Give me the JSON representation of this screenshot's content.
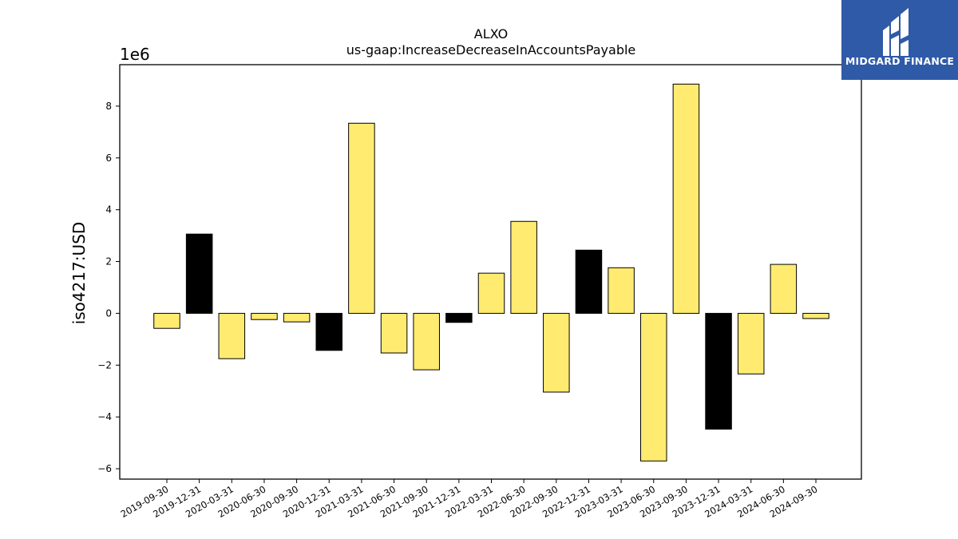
{
  "chart_data": {
    "type": "bar",
    "title": "ALXO",
    "subtitle": "us-gaap:IncreaseDecreaseInAccountsPayable",
    "ylabel": "iso4217:USD",
    "xlabel": "",
    "scale_label": "1e6",
    "ylim": [
      -6.4,
      9.6
    ],
    "yticks": [
      -6,
      -4,
      -2,
      0,
      2,
      4,
      6,
      8
    ],
    "grid": false,
    "categories": [
      "2019-09-30",
      "2019-12-31",
      "2020-03-31",
      "2020-06-30",
      "2020-09-30",
      "2020-12-31",
      "2021-03-31",
      "2021-06-30",
      "2021-09-30",
      "2021-12-31",
      "2022-03-31",
      "2022-06-30",
      "2022-09-30",
      "2022-12-31",
      "2023-03-31",
      "2023-06-30",
      "2023-09-30",
      "2023-12-31",
      "2024-03-31",
      "2024-06-30",
      "2024-09-30"
    ],
    "values": [
      -0.58,
      3.06,
      -1.75,
      -0.24,
      -0.33,
      -1.43,
      7.34,
      -1.53,
      -2.18,
      -0.35,
      1.55,
      3.55,
      -3.04,
      2.44,
      1.76,
      -5.7,
      8.85,
      -4.47,
      -2.34,
      1.89,
      -0.2
    ],
    "bar_colors": [
      "#ffeb70",
      "#000000",
      "#ffeb70",
      "#ffeb70",
      "#ffeb70",
      "#000000",
      "#ffeb70",
      "#ffeb70",
      "#ffeb70",
      "#000000",
      "#ffeb70",
      "#ffeb70",
      "#ffeb70",
      "#000000",
      "#ffeb70",
      "#ffeb70",
      "#ffeb70",
      "#000000",
      "#ffeb70",
      "#ffeb70",
      "#ffeb70"
    ]
  },
  "logo": {
    "text": "MIDGARD FINANCE",
    "background": "#2f5aa8"
  }
}
